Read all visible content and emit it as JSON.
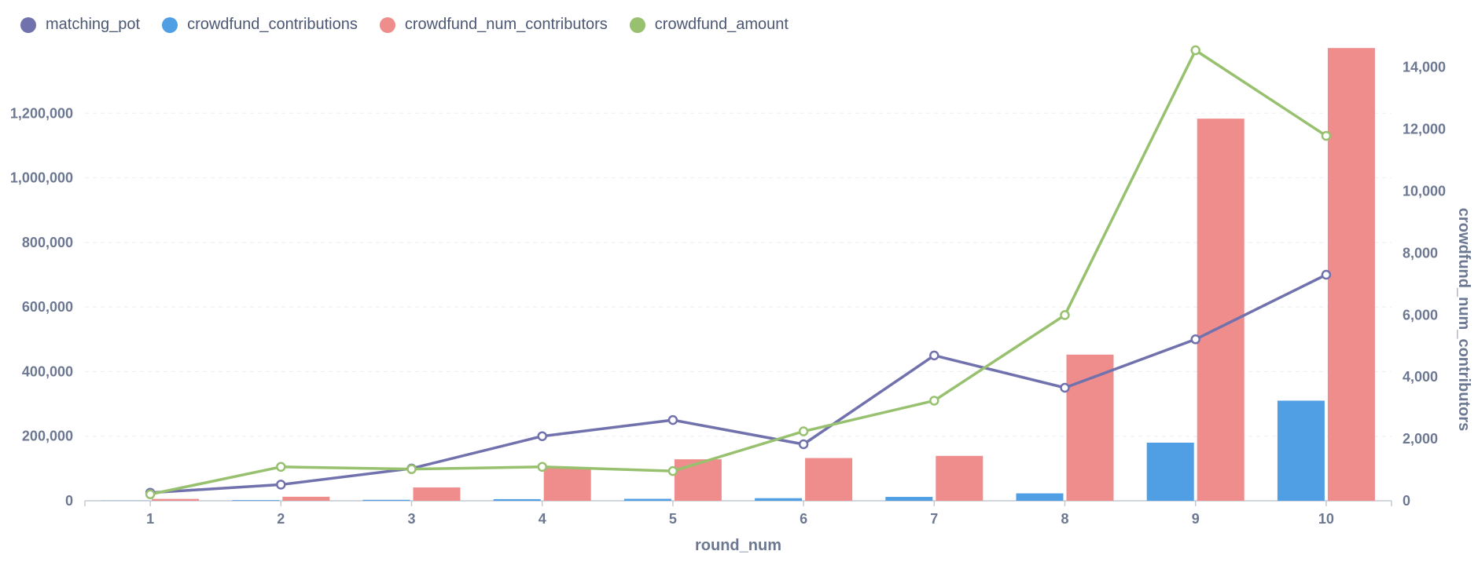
{
  "legend": [
    {
      "name": "matching_pot",
      "color": "#7172ad"
    },
    {
      "name": "crowdfund_contributions",
      "color": "#509ee3"
    },
    {
      "name": "crowdfund_num_contributors",
      "color": "#ef8c8c"
    },
    {
      "name": "crowdfund_amount",
      "color": "#98c16f"
    }
  ],
  "chart_data": {
    "type": "bar",
    "x": [
      1,
      2,
      3,
      4,
      5,
      6,
      7,
      8,
      9,
      10
    ],
    "xlabel": "round_num",
    "ylabel_left": "",
    "ylabel_right": "crowdfund_num_contributors",
    "ylim_left": [
      0,
      1400000
    ],
    "ylim_right": [
      0,
      14600
    ],
    "yticks_left": [
      0,
      200000,
      400000,
      600000,
      800000,
      1000000,
      1200000
    ],
    "yticks_right": [
      0,
      2000,
      4000,
      6000,
      8000,
      10000,
      12000,
      14000
    ],
    "grid": true,
    "legend_position": "top-left",
    "series": [
      {
        "name": "matching_pot",
        "type": "line",
        "axis": "left",
        "color": "#7172ad",
        "values": [
          25000,
          50000,
          100000,
          200000,
          250000,
          175000,
          450000,
          350000,
          500000,
          700000
        ]
      },
      {
        "name": "crowdfund_contributions",
        "type": "bar",
        "axis": "left",
        "color": "#509ee3",
        "values": [
          500,
          2000,
          3000,
          5000,
          6000,
          8000,
          12000,
          23000,
          180000,
          310000
        ]
      },
      {
        "name": "crowdfund_num_contributors",
        "type": "bar",
        "axis": "right",
        "color": "#ef8c8c",
        "values": [
          60,
          130,
          430,
          1050,
          1340,
          1380,
          1450,
          4720,
          12340,
          14620
        ]
      },
      {
        "name": "crowdfund_amount",
        "type": "line",
        "axis": "left",
        "color": "#98c16f",
        "values": [
          20000,
          105000,
          98000,
          105000,
          92000,
          215000,
          310000,
          575000,
          1395000,
          1130000
        ]
      }
    ]
  }
}
